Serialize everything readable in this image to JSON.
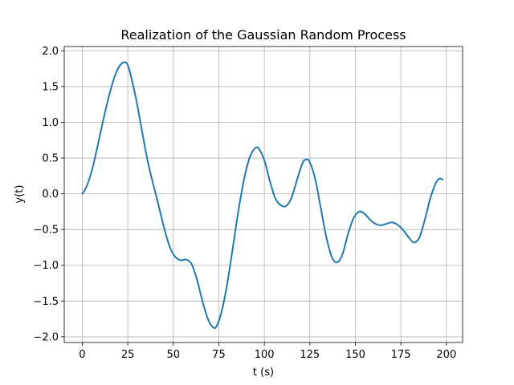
{
  "chart_data": {
    "type": "line",
    "title": "Realization of the Gaussian Random Process",
    "xlabel": "t (s)",
    "ylabel": "y(t)",
    "xlim": [
      -9.9,
      208.9
    ],
    "ylim": [
      -2.08,
      2.06
    ],
    "grid": true,
    "x_ticks": [
      0,
      25,
      50,
      75,
      100,
      125,
      150,
      175,
      200
    ],
    "y_ticks": [
      -2.0,
      -1.5,
      -1.0,
      -0.5,
      0.0,
      0.5,
      1.0,
      1.5,
      2.0
    ],
    "x_tick_labels": [
      "0",
      "25",
      "50",
      "75",
      "100",
      "125",
      "150",
      "175",
      "200"
    ],
    "y_tick_labels": [
      "−2.0",
      "−1.5",
      "−1.0",
      "−0.5",
      "0.0",
      "0.5",
      "1.0",
      "1.5",
      "2.0"
    ],
    "series": [
      {
        "color": "#1f77b4",
        "points": [
          [
            0,
            0.0
          ],
          [
            2,
            0.08
          ],
          [
            5,
            0.3
          ],
          [
            8,
            0.62
          ],
          [
            11,
            0.97
          ],
          [
            14,
            1.3
          ],
          [
            17,
            1.58
          ],
          [
            20,
            1.77
          ],
          [
            23,
            1.84
          ],
          [
            25,
            1.8
          ],
          [
            27,
            1.62
          ],
          [
            30,
            1.27
          ],
          [
            33,
            0.85
          ],
          [
            36,
            0.45
          ],
          [
            39,
            0.13
          ],
          [
            42,
            -0.17
          ],
          [
            45,
            -0.48
          ],
          [
            48,
            -0.74
          ],
          [
            51,
            -0.88
          ],
          [
            54,
            -0.93
          ],
          [
            57,
            -0.92
          ],
          [
            60,
            -0.98
          ],
          [
            63,
            -1.2
          ],
          [
            66,
            -1.5
          ],
          [
            69,
            -1.75
          ],
          [
            72,
            -1.87
          ],
          [
            74,
            -1.84
          ],
          [
            77,
            -1.6
          ],
          [
            80,
            -1.2
          ],
          [
            83,
            -0.7
          ],
          [
            86,
            -0.2
          ],
          [
            89,
            0.22
          ],
          [
            92,
            0.51
          ],
          [
            95,
            0.64
          ],
          [
            97,
            0.63
          ],
          [
            100,
            0.47
          ],
          [
            103,
            0.18
          ],
          [
            106,
            -0.06
          ],
          [
            109,
            -0.16
          ],
          [
            112,
            -0.17
          ],
          [
            115,
            -0.05
          ],
          [
            118,
            0.2
          ],
          [
            121,
            0.43
          ],
          [
            123,
            0.48
          ],
          [
            125,
            0.44
          ],
          [
            128,
            0.2
          ],
          [
            131,
            -0.2
          ],
          [
            134,
            -0.6
          ],
          [
            137,
            -0.88
          ],
          [
            140,
            -0.96
          ],
          [
            143,
            -0.84
          ],
          [
            146,
            -0.56
          ],
          [
            149,
            -0.34
          ],
          [
            152,
            -0.25
          ],
          [
            155,
            -0.28
          ],
          [
            158,
            -0.36
          ],
          [
            161,
            -0.42
          ],
          [
            164,
            -0.44
          ],
          [
            167,
            -0.42
          ],
          [
            170,
            -0.4
          ],
          [
            173,
            -0.43
          ],
          [
            176,
            -0.5
          ],
          [
            179,
            -0.6
          ],
          [
            182,
            -0.68
          ],
          [
            185,
            -0.62
          ],
          [
            188,
            -0.38
          ],
          [
            191,
            -0.08
          ],
          [
            194,
            0.14
          ],
          [
            196,
            0.21
          ],
          [
            198,
            0.2
          ]
        ]
      }
    ]
  }
}
